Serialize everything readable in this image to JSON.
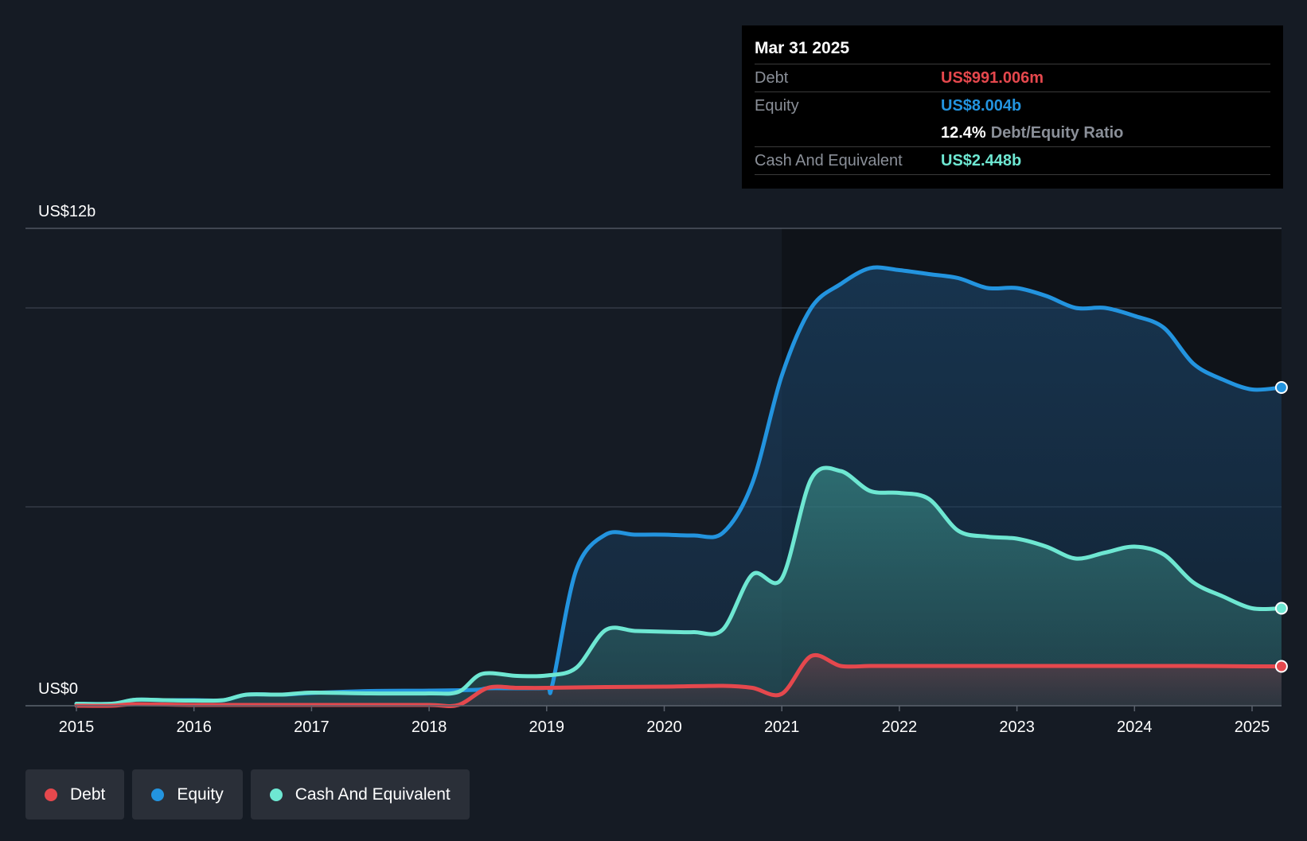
{
  "tooltip": {
    "date": "Mar 31 2025",
    "debt_label": "Debt",
    "debt_value": "US$991.006m",
    "equity_label": "Equity",
    "equity_value": "US$8.004b",
    "ratio_value": "12.4%",
    "ratio_label": "Debt/Equity Ratio",
    "cash_label": "Cash And Equivalent",
    "cash_value": "US$2.448b"
  },
  "legend": {
    "debt": "Debt",
    "equity": "Equity",
    "cash": "Cash And Equivalent"
  },
  "colors": {
    "debt": "#e5484d",
    "equity": "#2394df",
    "cash": "#6ee7d2",
    "background": "#151b24",
    "grid": "#3a414c"
  },
  "chart_data": {
    "type": "area",
    "ylim": [
      0,
      12
    ],
    "y_unit": "US$ billions",
    "y_tick_labels": [
      {
        "value": 12,
        "label": "US$12b"
      },
      {
        "value": 0,
        "label": "US$0"
      }
    ],
    "gridlines": [
      12,
      10,
      5,
      0
    ],
    "grid": true,
    "x_ticks": [
      2015,
      2016,
      2017,
      2018,
      2019,
      2020,
      2021,
      2022,
      2023,
      2024,
      2025
    ],
    "x_range": [
      2014.6,
      2025.25
    ],
    "highlight_x": 2025.25,
    "legend_position": "bottom-left",
    "series": [
      {
        "name": "Equity",
        "key": "equity",
        "points": [
          [
            2015.0,
            0.05
          ],
          [
            2015.3,
            0.05
          ],
          [
            2015.5,
            0.15
          ],
          [
            2015.75,
            0.14
          ],
          [
            2016.0,
            0.14
          ],
          [
            2016.25,
            0.14
          ],
          [
            2016.45,
            0.28
          ],
          [
            2016.75,
            0.28
          ],
          [
            2017.0,
            0.32
          ],
          [
            2017.5,
            0.37
          ],
          [
            2018.0,
            0.38
          ],
          [
            2018.4,
            0.4
          ],
          [
            2018.5,
            0.44
          ],
          [
            2018.75,
            0.44
          ],
          [
            2019.0,
            0.45
          ],
          [
            2019.05,
            0.55
          ],
          [
            2019.25,
            3.4
          ],
          [
            2019.5,
            4.3
          ],
          [
            2019.75,
            4.3
          ],
          [
            2020.0,
            4.3
          ],
          [
            2020.25,
            4.28
          ],
          [
            2020.5,
            4.35
          ],
          [
            2020.75,
            5.6
          ],
          [
            2021.0,
            8.3
          ],
          [
            2021.25,
            10.0
          ],
          [
            2021.5,
            10.6
          ],
          [
            2021.75,
            11.0
          ],
          [
            2022.0,
            10.95
          ],
          [
            2022.25,
            10.85
          ],
          [
            2022.5,
            10.75
          ],
          [
            2022.75,
            10.5
          ],
          [
            2023.0,
            10.5
          ],
          [
            2023.25,
            10.3
          ],
          [
            2023.5,
            10.0
          ],
          [
            2023.75,
            10.0
          ],
          [
            2024.0,
            9.8
          ],
          [
            2024.25,
            9.5
          ],
          [
            2024.5,
            8.6
          ],
          [
            2024.75,
            8.2
          ],
          [
            2025.0,
            7.95
          ],
          [
            2025.25,
            8.0
          ]
        ]
      },
      {
        "name": "Cash And Equivalent",
        "key": "cash",
        "points": [
          [
            2015.0,
            0.05
          ],
          [
            2015.3,
            0.05
          ],
          [
            2015.5,
            0.15
          ],
          [
            2015.75,
            0.14
          ],
          [
            2016.0,
            0.13
          ],
          [
            2016.25,
            0.14
          ],
          [
            2016.45,
            0.28
          ],
          [
            2016.75,
            0.28
          ],
          [
            2017.0,
            0.33
          ],
          [
            2017.5,
            0.31
          ],
          [
            2018.0,
            0.31
          ],
          [
            2018.25,
            0.35
          ],
          [
            2018.45,
            0.8
          ],
          [
            2018.75,
            0.75
          ],
          [
            2019.0,
            0.76
          ],
          [
            2019.25,
            0.95
          ],
          [
            2019.5,
            1.9
          ],
          [
            2019.75,
            1.88
          ],
          [
            2020.0,
            1.86
          ],
          [
            2020.25,
            1.85
          ],
          [
            2020.5,
            1.92
          ],
          [
            2020.75,
            3.3
          ],
          [
            2021.0,
            3.2
          ],
          [
            2021.25,
            5.7
          ],
          [
            2021.5,
            5.9
          ],
          [
            2021.75,
            5.4
          ],
          [
            2022.0,
            5.35
          ],
          [
            2022.25,
            5.2
          ],
          [
            2022.5,
            4.4
          ],
          [
            2022.75,
            4.25
          ],
          [
            2023.0,
            4.2
          ],
          [
            2023.25,
            4.0
          ],
          [
            2023.5,
            3.7
          ],
          [
            2023.75,
            3.85
          ],
          [
            2024.0,
            4.0
          ],
          [
            2024.25,
            3.8
          ],
          [
            2024.5,
            3.1
          ],
          [
            2024.75,
            2.75
          ],
          [
            2025.0,
            2.45
          ],
          [
            2025.25,
            2.45
          ]
        ]
      },
      {
        "name": "Debt",
        "key": "debt",
        "points": [
          [
            2015.0,
            0.0
          ],
          [
            2015.3,
            0.0
          ],
          [
            2015.5,
            0.04
          ],
          [
            2016.0,
            0.02
          ],
          [
            2016.5,
            0.02
          ],
          [
            2017.0,
            0.02
          ],
          [
            2017.5,
            0.02
          ],
          [
            2018.0,
            0.02
          ],
          [
            2018.25,
            0.02
          ],
          [
            2018.5,
            0.45
          ],
          [
            2018.75,
            0.45
          ],
          [
            2019.0,
            0.45
          ],
          [
            2019.5,
            0.47
          ],
          [
            2020.0,
            0.48
          ],
          [
            2020.5,
            0.5
          ],
          [
            2020.75,
            0.45
          ],
          [
            2021.0,
            0.3
          ],
          [
            2021.25,
            1.25
          ],
          [
            2021.5,
            1.0
          ],
          [
            2021.75,
            1.0
          ],
          [
            2022.0,
            1.0
          ],
          [
            2022.5,
            1.0
          ],
          [
            2023.0,
            1.0
          ],
          [
            2023.5,
            1.0
          ],
          [
            2024.0,
            1.0
          ],
          [
            2024.5,
            1.0
          ],
          [
            2025.0,
            0.99
          ],
          [
            2025.25,
            0.99
          ]
        ]
      }
    ]
  }
}
